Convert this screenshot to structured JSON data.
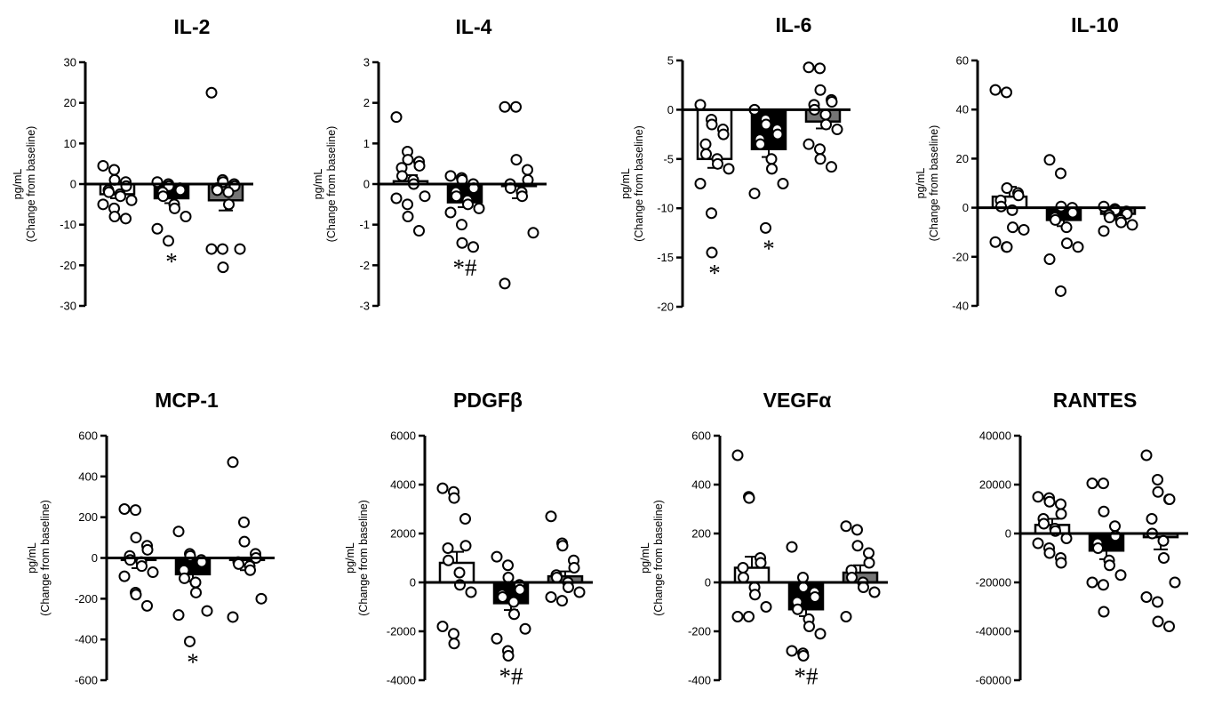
{
  "legend_colors": {
    "group_a": "#ffffff",
    "group_b": "#000000",
    "group_c": "#757575",
    "points": "#ffffff"
  },
  "chart_data": [
    {
      "type": "bar",
      "title": "IL-2",
      "ylabel_line1": "pg/mL",
      "ylabel_line2": "(Change from baseline)",
      "ylim": [
        -30,
        30
      ],
      "yticks": [
        -30,
        -20,
        -10,
        0,
        10,
        20,
        30
      ],
      "ytick_labels": [
        "-30",
        "-20",
        "-10",
        "0",
        "10",
        "20",
        "30"
      ],
      "grid": false,
      "bars": [
        {
          "value": -2.5,
          "sem": 1.0,
          "points": [
            4.5,
            3.5,
            1.0,
            0.5,
            -0.5,
            -1.5,
            -2.0,
            -2.5,
            -3.0,
            -4.0,
            -5.0,
            -6.0,
            -8.0,
            -8.5
          ],
          "mark": ""
        },
        {
          "value": -3.5,
          "sem": 1.2,
          "points": [
            0.5,
            0.0,
            -0.5,
            -1.0,
            -1.5,
            -2.0,
            -3.0,
            -5.0,
            -6.0,
            -8.0,
            -11.0,
            -14.0
          ],
          "mark": "*"
        },
        {
          "value": -4.0,
          "sem": 2.5,
          "points": [
            22.5,
            1.0,
            0.5,
            0.0,
            -0.5,
            -1.0,
            -1.5,
            -2.0,
            -5.0,
            -16.0,
            -16.0,
            -16.0,
            -20.5
          ],
          "mark": ""
        }
      ]
    },
    {
      "type": "bar",
      "title": "IL-4",
      "ylabel_line1": "pg/mL",
      "ylabel_line2": "(Change from baseline)",
      "ylim": [
        -3,
        3
      ],
      "yticks": [
        -3,
        -2,
        -1,
        0,
        1,
        2,
        3
      ],
      "ytick_labels": [
        "-3",
        "-2",
        "-1",
        "0",
        "1",
        "2",
        "3"
      ],
      "grid": false,
      "bars": [
        {
          "value": 0.07,
          "sem": 0.15,
          "points": [
            1.65,
            0.8,
            0.6,
            0.55,
            0.45,
            0.4,
            0.2,
            0.1,
            0.0,
            -0.3,
            -0.35,
            -0.5,
            -0.8,
            -1.15
          ],
          "mark": ""
        },
        {
          "value": -0.45,
          "sem": 0.12,
          "points": [
            0.2,
            0.15,
            0.1,
            0.0,
            -0.1,
            -0.2,
            -0.3,
            -0.4,
            -0.5,
            -0.6,
            -0.7,
            -1.0,
            -1.45,
            -1.55
          ],
          "mark": "*#"
        },
        {
          "value": -0.05,
          "sem": 0.3,
          "points": [
            1.9,
            1.9,
            0.6,
            0.35,
            0.1,
            0.0,
            -0.1,
            -0.2,
            -0.3,
            -1.2,
            -2.45
          ],
          "mark": ""
        }
      ]
    },
    {
      "type": "bar",
      "title": "IL-6",
      "ylabel_line1": "pg/mL",
      "ylabel_line2": "(Change from baseline)",
      "ylim": [
        -20,
        5
      ],
      "yticks": [
        -20,
        -15,
        -10,
        -5,
        0,
        5
      ],
      "ytick_labels": [
        "-20",
        "-15",
        "-10",
        "-5",
        "0",
        "5"
      ],
      "grid": false,
      "bars": [
        {
          "value": -5.0,
          "sem": 0.9,
          "points": [
            0.5,
            -1.0,
            -1.5,
            -2.0,
            -2.5,
            -3.5,
            -4.5,
            -5.0,
            -5.5,
            -6.0,
            -7.5,
            -10.5,
            -14.5
          ],
          "mark": "*"
        },
        {
          "value": -4.0,
          "sem": 0.8,
          "points": [
            0.0,
            -1.0,
            -1.5,
            -2.0,
            -2.5,
            -3.0,
            -3.5,
            -5.0,
            -6.0,
            -7.5,
            -8.5,
            -12.0
          ],
          "mark": "*"
        },
        {
          "value": -1.2,
          "sem": 0.7,
          "points": [
            4.3,
            4.2,
            2.0,
            1.0,
            0.8,
            0.5,
            0.0,
            -0.5,
            -1.5,
            -2.0,
            -3.5,
            -4.0,
            -5.0,
            -5.8
          ],
          "mark": ""
        }
      ]
    },
    {
      "type": "bar",
      "title": "IL-10",
      "ylabel_line1": "pg/mL",
      "ylabel_line2": "(Change from baseline)",
      "ylim": [
        -40,
        60
      ],
      "yticks": [
        -40,
        -20,
        0,
        20,
        40,
        60
      ],
      "ytick_labels": [
        "-40",
        "-20",
        "0",
        "20",
        "40",
        "60"
      ],
      "grid": false,
      "bars": [
        {
          "value": 4.5,
          "sem": 4.0,
          "points": [
            48.0,
            47.0,
            8.0,
            6.0,
            5.0,
            3.0,
            0.5,
            -1.0,
            -8.0,
            -9.0,
            -14.0,
            -16.0,
            -16.0
          ],
          "mark": ""
        },
        {
          "value": -5.0,
          "sem": 2.5,
          "points": [
            19.5,
            14.0,
            0.5,
            0.0,
            -2.0,
            -4.0,
            -5.0,
            -8.0,
            -14.5,
            -16.0,
            -21.0,
            -34.0
          ],
          "mark": ""
        },
        {
          "value": -2.5,
          "sem": 1.0,
          "points": [
            0.5,
            -0.5,
            -1.0,
            -1.5,
            -2.5,
            -3.0,
            -4.0,
            -5.0,
            -6.0,
            -7.0,
            -9.5
          ],
          "mark": ""
        }
      ]
    },
    {
      "type": "bar",
      "title": "MCP-1",
      "ylabel_line1": "pg/mL",
      "ylabel_line2": "(Change from baseline)",
      "ylim": [
        -600,
        600
      ],
      "yticks": [
        -600,
        -400,
        -200,
        0,
        200,
        400,
        600
      ],
      "ytick_labels": [
        "-600",
        "-400",
        "-200",
        "0",
        "200",
        "400",
        "600"
      ],
      "grid": false,
      "bars": [
        {
          "value": -10,
          "sem": 40,
          "points": [
            240,
            235,
            100,
            60,
            40,
            10,
            -10,
            -20,
            -40,
            -70,
            -90,
            -170,
            -180,
            -235
          ],
          "mark": ""
        },
        {
          "value": -80,
          "sem": 35,
          "points": [
            130,
            20,
            10,
            -10,
            -20,
            -60,
            -100,
            -120,
            -170,
            -260,
            -280,
            -410
          ],
          "mark": "*"
        },
        {
          "value": -10,
          "sem": 50,
          "points": [
            470,
            175,
            80,
            20,
            0,
            -20,
            -30,
            -40,
            -60,
            -200,
            -290
          ],
          "mark": ""
        }
      ]
    },
    {
      "type": "bar",
      "title": "PDGFβ",
      "ylabel_line1": "pg/mL",
      "ylabel_line2": "(Change from baseline)",
      "ylim": [
        -4000,
        6000
      ],
      "yticks": [
        -4000,
        -2000,
        0,
        2000,
        4000,
        6000
      ],
      "ytick_labels": [
        "-4000",
        "-2000",
        "0",
        "2000",
        "4000",
        "6000"
      ],
      "grid": false,
      "bars": [
        {
          "value": 800,
          "sem": 450,
          "points": [
            3850,
            3700,
            3450,
            2600,
            1500,
            1400,
            900,
            400,
            -100,
            -400,
            -1800,
            -2100,
            -2500
          ],
          "mark": ""
        },
        {
          "value": -850,
          "sem": 280,
          "points": [
            1050,
            700,
            200,
            -100,
            -300,
            -500,
            -600,
            -800,
            -1300,
            -1900,
            -2300,
            -2800,
            -3000
          ],
          "mark": "*#"
        },
        {
          "value": 250,
          "sem": 200,
          "points": [
            2700,
            1600,
            1500,
            900,
            600,
            300,
            200,
            0,
            -200,
            -400,
            -600,
            -750
          ],
          "mark": ""
        }
      ]
    },
    {
      "type": "bar",
      "title": "VEGFα",
      "ylabel_line1": "pg/mL",
      "ylabel_line2": "(Change from baseline)",
      "ylim": [
        -400,
        600
      ],
      "yticks": [
        -400,
        -200,
        0,
        200,
        400,
        600
      ],
      "ytick_labels": [
        "-400",
        "-200",
        "0",
        "200",
        "400",
        "600"
      ],
      "grid": false,
      "bars": [
        {
          "value": 60,
          "sem": 45,
          "points": [
            520,
            350,
            345,
            100,
            80,
            60,
            20,
            -20,
            -50,
            -100,
            -140,
            -140
          ],
          "mark": ""
        },
        {
          "value": -110,
          "sem": 28,
          "points": [
            145,
            20,
            -20,
            -40,
            -60,
            -80,
            -110,
            -150,
            -180,
            -210,
            -280,
            -290,
            -300
          ],
          "mark": "*#"
        },
        {
          "value": 40,
          "sem": 30,
          "points": [
            230,
            215,
            150,
            120,
            80,
            50,
            20,
            0,
            -20,
            -40,
            -140
          ],
          "mark": ""
        }
      ]
    },
    {
      "type": "bar",
      "title": "RANTES",
      "ylabel_line1": "",
      "ylabel_line2": "",
      "ylim": [
        -60000,
        40000
      ],
      "yticks": [
        -60000,
        -40000,
        -20000,
        0,
        20000,
        40000
      ],
      "ytick_labels": [
        "-60000",
        "-40000",
        "-20000",
        "0",
        "20000",
        "40000"
      ],
      "grid": false,
      "bars": [
        {
          "value": 3500,
          "sem": 2500,
          "points": [
            15000,
            14500,
            13000,
            12000,
            8000,
            6000,
            4000,
            2000,
            1000,
            -2000,
            -4000,
            -6000,
            -8000,
            -10000,
            -12000
          ],
          "mark": ""
        },
        {
          "value": -7000,
          "sem": 3500,
          "points": [
            20500,
            20500,
            9000,
            3000,
            -1000,
            -4000,
            -6000,
            -11000,
            -13000,
            -17000,
            -20000,
            -21000,
            -32000
          ],
          "mark": ""
        },
        {
          "value": -1500,
          "sem": 5000,
          "points": [
            32000,
            22000,
            17000,
            14000,
            14000,
            6000,
            0,
            -3000,
            -10000,
            -20000,
            -26000,
            -28000,
            -36000,
            -38000
          ],
          "mark": ""
        }
      ]
    }
  ]
}
